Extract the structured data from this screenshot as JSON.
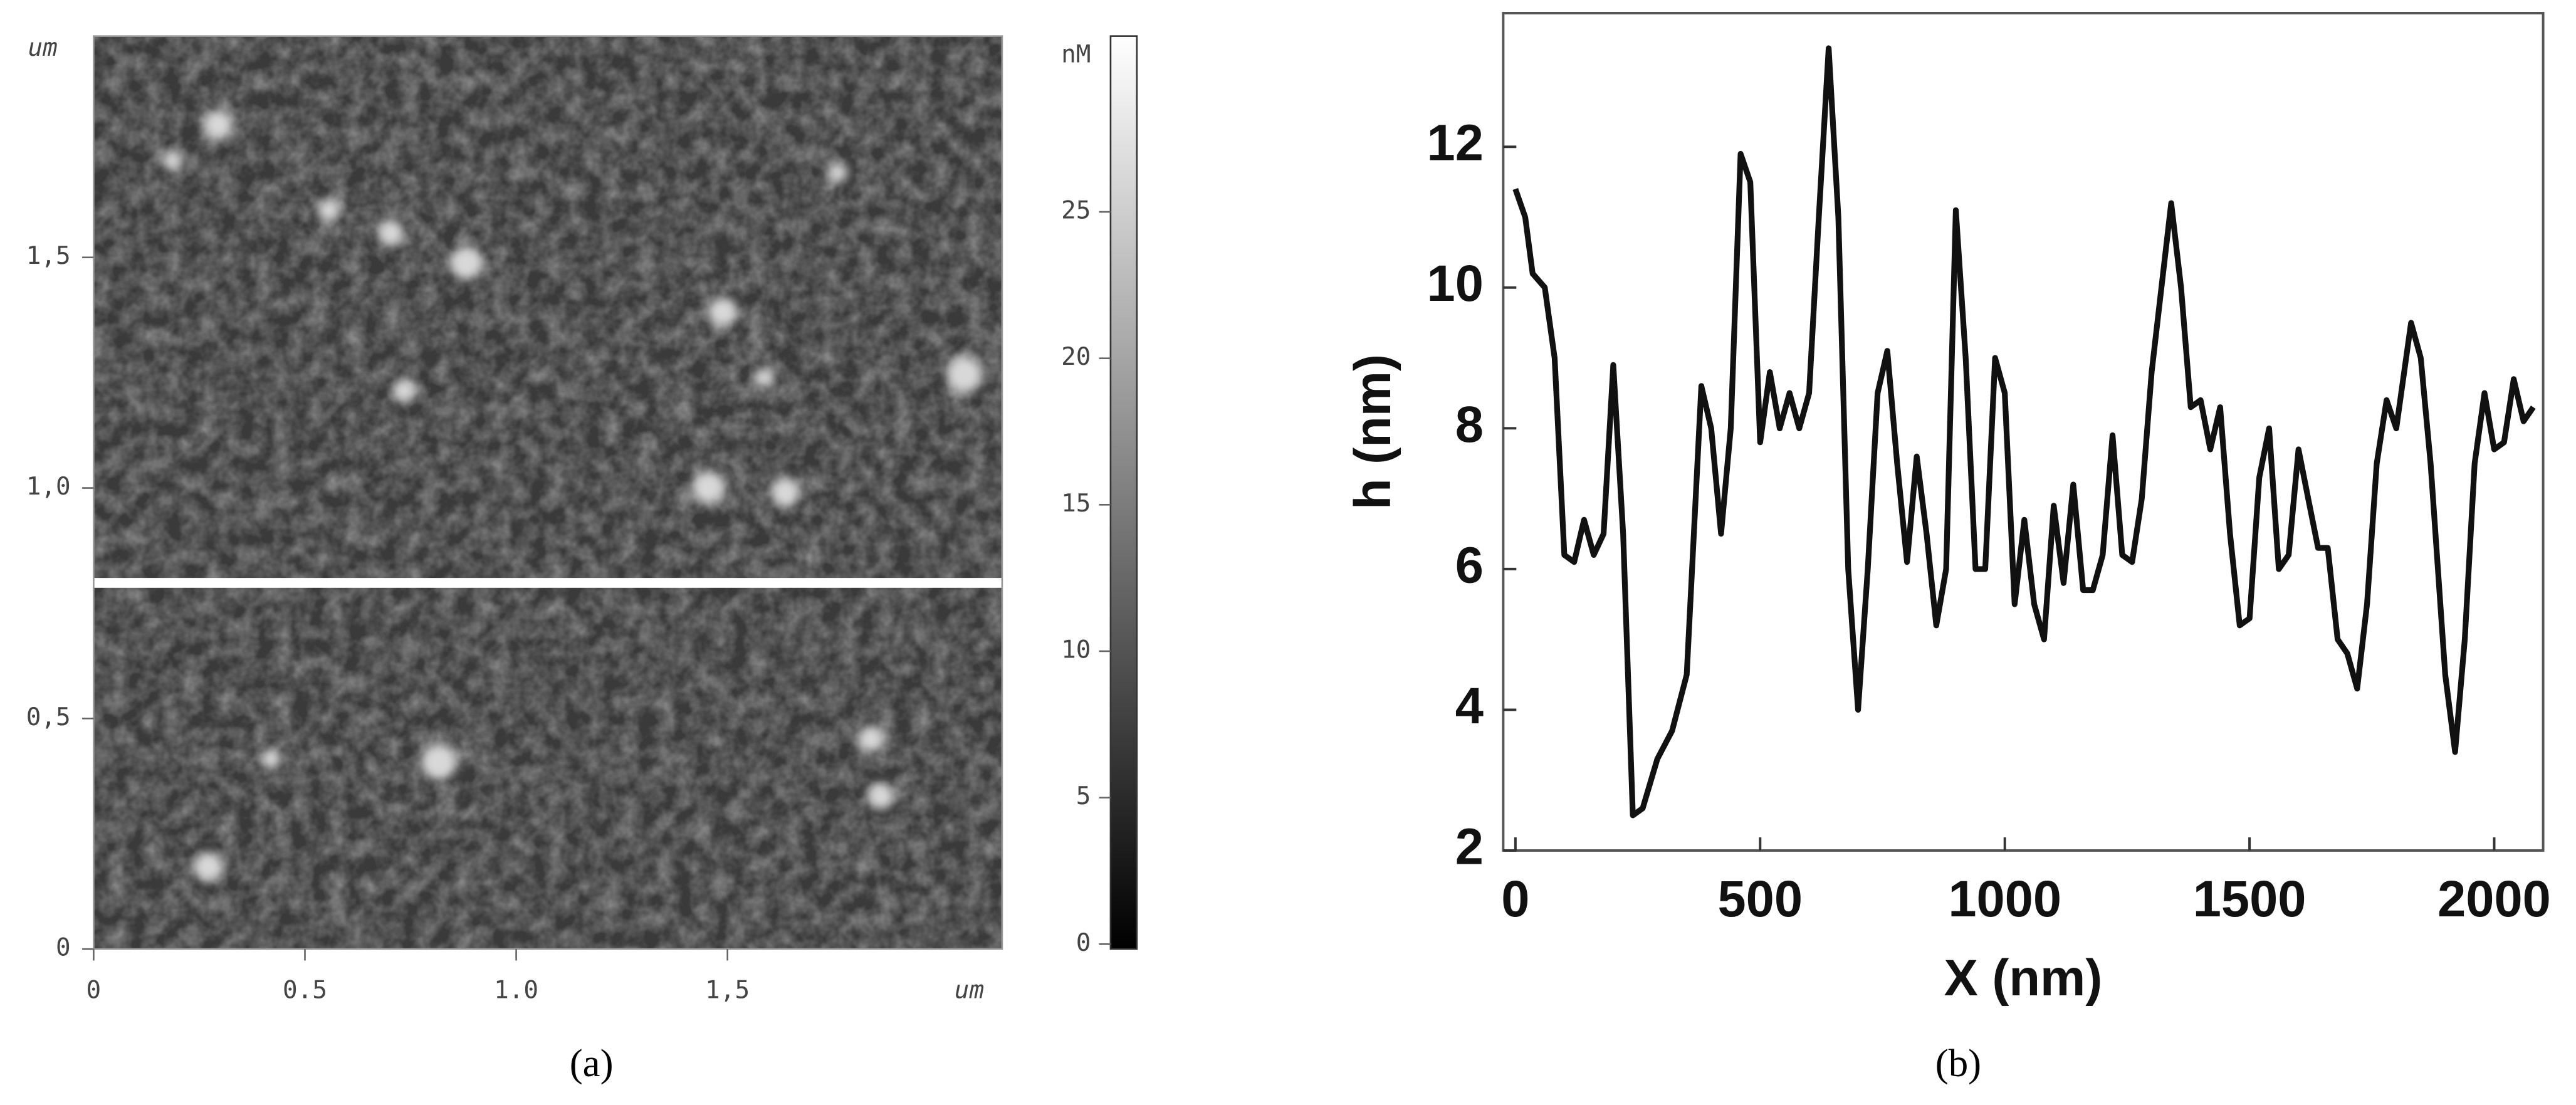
{
  "chart_data": [
    {
      "type": "image",
      "caption": "(a)",
      "xlabel": "um",
      "ylabel": "um",
      "xlim": [
        0,
        2.15
      ],
      "ylim": [
        0,
        1.98
      ],
      "xticks": [
        0,
        0.5,
        {
          "value": 1.0,
          "label": "1.0"
        },
        {
          "value": 1.5,
          "label": "1,5"
        }
      ],
      "yticks": [
        0,
        {
          "value": 0.5,
          "label": "0,5"
        },
        {
          "value": 1.0,
          "label": "1,0"
        },
        {
          "value": 1.5,
          "label": "1,5"
        }
      ],
      "colorbar": {
        "label": "nM",
        "lim": [
          0,
          31
        ],
        "ticks": [
          0,
          5,
          10,
          15,
          20,
          25
        ]
      }
    },
    {
      "type": "line",
      "caption": "(b)",
      "xlabel": "X (nm)",
      "ylabel": "h (nm)",
      "color": "#111111",
      "xlim": [
        -25,
        2100
      ],
      "ylim": [
        2,
        13.9
      ],
      "xticks": [
        0,
        500,
        1000,
        1500,
        2000
      ],
      "yticks": [
        2,
        4,
        6,
        8,
        10,
        12
      ],
      "x": [
        0,
        20,
        35,
        60,
        80,
        100,
        120,
        140,
        160,
        180,
        200,
        220,
        240,
        260,
        290,
        320,
        350,
        380,
        400,
        420,
        440,
        460,
        480,
        500,
        520,
        540,
        560,
        580,
        600,
        620,
        640,
        660,
        680,
        700,
        720,
        740,
        760,
        780,
        800,
        820,
        840,
        860,
        880,
        900,
        920,
        940,
        960,
        980,
        1000,
        1020,
        1040,
        1060,
        1080,
        1100,
        1120,
        1140,
        1160,
        1180,
        1200,
        1220,
        1240,
        1260,
        1280,
        1300,
        1340,
        1360,
        1380,
        1400,
        1420,
        1440,
        1460,
        1480,
        1500,
        1520,
        1540,
        1560,
        1580,
        1600,
        1620,
        1640,
        1660,
        1680,
        1700,
        1720,
        1740,
        1760,
        1780,
        1800,
        1830,
        1850,
        1870,
        1900,
        1920,
        1940,
        1960,
        1980,
        2000,
        2020,
        2040,
        2060,
        2080
      ],
      "values": [
        11.4,
        11,
        10.2,
        10,
        9,
        6.2,
        6.1,
        6.7,
        6.2,
        6.5,
        8.9,
        6.5,
        2.5,
        2.6,
        3.3,
        3.7,
        4.5,
        8.6,
        8,
        6.5,
        8,
        11.9,
        11.5,
        7.8,
        8.8,
        8,
        8.5,
        8,
        8.5,
        11,
        13.4,
        11,
        6,
        4,
        6,
        8.5,
        9.1,
        7.5,
        6.1,
        7.6,
        6.5,
        5.2,
        6,
        11.1,
        9,
        6,
        6,
        9,
        8.5,
        5.5,
        6.7,
        5.5,
        5,
        6.9,
        5.8,
        7.2,
        5.7,
        5.7,
        6.2,
        7.9,
        6.2,
        6.1,
        7,
        8.8,
        11.2,
        10,
        8.3,
        8.4,
        7.7,
        8.3,
        6.5,
        5.2,
        5.3,
        7.3,
        8,
        6,
        6.2,
        7.7,
        7,
        6.3,
        6.3,
        5,
        4.8,
        4.3,
        5.5,
        7.5,
        8.4,
        8,
        9.5,
        9,
        7.5,
        4.5,
        3.4,
        5,
        7.5,
        8.5,
        7.7,
        7.8,
        8.7,
        8.1,
        8.3
      ]
    }
  ]
}
